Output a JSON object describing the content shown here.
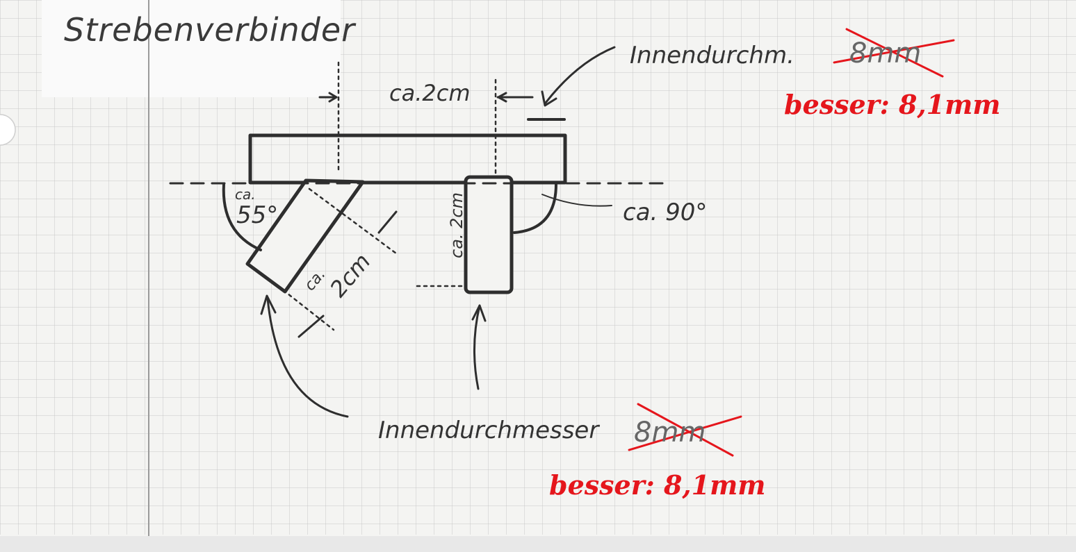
{
  "title": "Strebenverbinder",
  "labels": {
    "inner_diameter_short": "Innendurchm.",
    "inner_diameter_long": "Innendurchmesser",
    "width_top": "ca.2cm",
    "angle_left_ca": "ca.",
    "angle_left_value": "55°",
    "angle_right": "ca. 90°",
    "length_angled_ca": "ca.",
    "length_angled_value": "2cm",
    "length_vertical": "ca. 2cm"
  },
  "corrections": {
    "old_value_top": "8mm",
    "new_value_top": "besser: 8,1mm",
    "old_value_bottom": "8mm",
    "new_value_bottom": "besser: 8,1mm"
  },
  "colors": {
    "ink": "#333333",
    "correction": "#e5161c",
    "grid": "#c9c9c9",
    "paper": "#f4f4f2"
  }
}
